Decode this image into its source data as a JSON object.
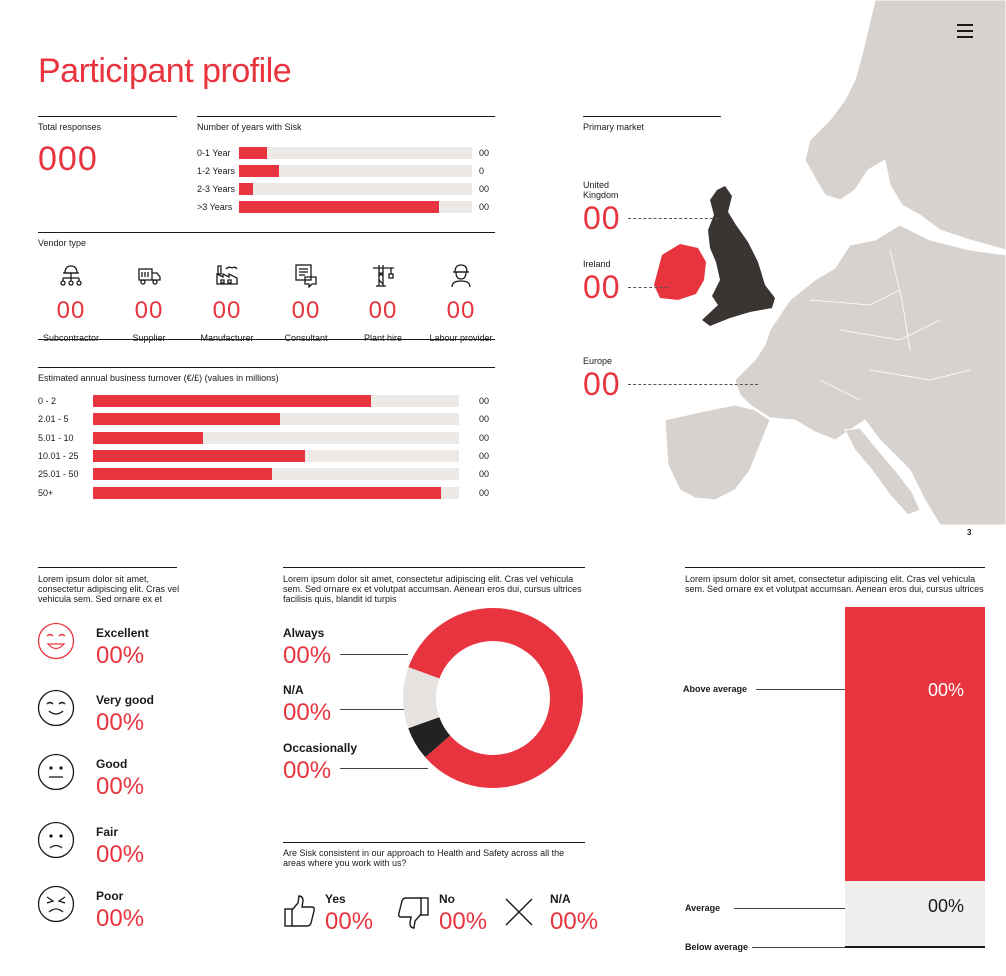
{
  "page": {
    "title": "Participant profile",
    "page_number": "3"
  },
  "total_responses": {
    "label": "Total responses",
    "value": "000"
  },
  "years_with_sisk": {
    "label": "Number of years with Sisk",
    "rows": [
      {
        "label": "0-1 Year",
        "value": "00",
        "fraction": 0.12
      },
      {
        "label": "1-2 Years",
        "value": "0",
        "fraction": 0.17
      },
      {
        "label": "2-3 Years",
        "value": "00",
        "fraction": 0.06
      },
      {
        "label": ">3 Years",
        "value": "00",
        "fraction": 0.86
      }
    ]
  },
  "vendor_type": {
    "label": "Vendor type",
    "items": [
      {
        "name": "Subcontractor",
        "value": "00",
        "icon": "network-helmet-icon"
      },
      {
        "name": "Supplier",
        "value": "00",
        "icon": "delivery-truck-icon"
      },
      {
        "name": "Manufacturer",
        "value": "00",
        "icon": "factory-icon"
      },
      {
        "name": "Consultant",
        "value": "00",
        "icon": "document-chat-icon"
      },
      {
        "name": "Plant hire",
        "value": "00",
        "icon": "crane-icon"
      },
      {
        "name": "Labour provider",
        "value": "00",
        "icon": "worker-icon"
      }
    ]
  },
  "turnover": {
    "label": "Estimated annual business turnover (€/£) (values in millions)",
    "rows": [
      {
        "label": "0 - 2",
        "value": "00",
        "fraction": 0.76
      },
      {
        "label": "2.01 - 5",
        "value": "00",
        "fraction": 0.51
      },
      {
        "label": "5.01 - 10",
        "value": "00",
        "fraction": 0.3
      },
      {
        "label": "10.01 - 25",
        "value": "00",
        "fraction": 0.58
      },
      {
        "label": "25.01 - 50",
        "value": "00",
        "fraction": 0.49
      },
      {
        "label": "50+",
        "value": "00",
        "fraction": 0.95
      }
    ]
  },
  "primary_market": {
    "label": "Primary market",
    "items": [
      {
        "label": "United Kingdom",
        "value": "00"
      },
      {
        "label": "Ireland",
        "value": "00"
      },
      {
        "label": "Europe",
        "value": "00"
      }
    ]
  },
  "ratings": {
    "question": "Lorem ipsum dolor sit amet, consectetur adipiscing elit. Cras vel vehicula sem. Sed ornare ex et",
    "items": [
      {
        "label": "Excellent",
        "value": "00%",
        "icon": "grinning-face-icon",
        "accent": "#e8343f"
      },
      {
        "label": "Very good",
        "value": "00%",
        "icon": "smiling-face-icon",
        "accent": "#1a1a1a"
      },
      {
        "label": "Good",
        "value": "00%",
        "icon": "neutral-face-icon",
        "accent": "#1a1a1a"
      },
      {
        "label": "Fair",
        "value": "00%",
        "icon": "frowning-face-icon",
        "accent": "#1a1a1a"
      },
      {
        "label": "Poor",
        "value": "00%",
        "icon": "angry-face-icon",
        "accent": "#1a1a1a"
      }
    ]
  },
  "frequency": {
    "question": "Lorem ipsum dolor sit amet, consectetur adipiscing elit. Cras vel vehicula sem. Sed ornare ex et volutpat accumsan. Aenean eros dui, cursus ultrices facilisis quis, blandit id turpis",
    "items": [
      {
        "label": "Always",
        "value": "00%"
      },
      {
        "label": "N/A",
        "value": "00%"
      },
      {
        "label": "Occasionally",
        "value": "00%"
      }
    ]
  },
  "chart_data": {
    "type": "pie",
    "categories": [
      "Always",
      "N/A",
      "Occasionally"
    ],
    "values": [
      83,
      11,
      6
    ],
    "colors": [
      "#e8343f",
      "#e6e3e0",
      "#222222"
    ],
    "donut": true
  },
  "consistency": {
    "question": "Are Sisk consistent in our approach to Health and Safety across all the areas where you work with us?",
    "items": [
      {
        "label": "Yes",
        "value": "00%",
        "icon": "thumbs-up-icon"
      },
      {
        "label": "No",
        "value": "00%",
        "icon": "thumbs-down-icon"
      },
      {
        "label": "N/A",
        "value": "00%",
        "icon": "cross-icon"
      }
    ]
  },
  "comparison": {
    "question": "Lorem ipsum dolor sit amet, consectetur adipiscing elit. Cras vel vehicula sem. Sed ornare ex et volutpat accumsan. Aenean eros dui, cursus ultrices",
    "above": {
      "label": "Above average",
      "value": "00%"
    },
    "average": {
      "label": "Average",
      "value": "00%"
    },
    "below": {
      "label": "Below average"
    }
  },
  "colors": {
    "accent": "#e8343f",
    "track": "#ece9e6",
    "map_land": "#d8d2ce",
    "uk_fill": "#3a3432"
  }
}
